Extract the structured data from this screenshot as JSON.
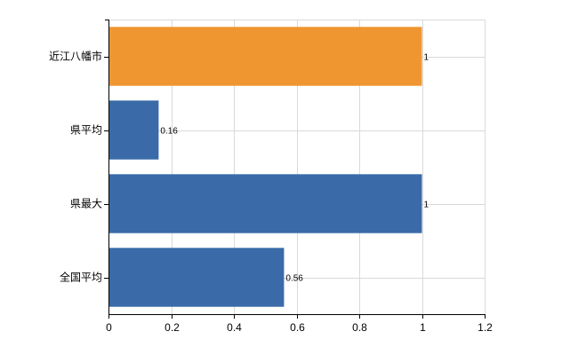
{
  "chart_data": {
    "type": "bar",
    "orientation": "horizontal",
    "categories": [
      "近江八幡市",
      "県平均",
      "県最大",
      "全国平均"
    ],
    "values": [
      1,
      0.16,
      1,
      0.56
    ],
    "data_labels": [
      "1",
      "0.16",
      "1",
      "0.56"
    ],
    "bar_colors": [
      "#ef9631",
      "#3a6ba8",
      "#3a6ba8",
      "#3a6ba8"
    ],
    "title": "",
    "xlabel": "",
    "ylabel": "",
    "xlim": [
      0,
      1.2
    ],
    "x_ticks": [
      0,
      0.2,
      0.4,
      0.6,
      0.8,
      1,
      1.2
    ],
    "x_tick_labels": [
      "0",
      "0.2",
      "0.4",
      "0.6",
      "0.8",
      "1",
      "1.2"
    ],
    "grid": true,
    "legend": "none"
  }
}
